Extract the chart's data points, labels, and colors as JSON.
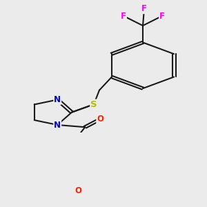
{
  "background_color": "#ebebeb",
  "bond_color": "#1a1a1a",
  "colors": {
    "N": "#0000cc",
    "O_carbonyl": "#ff2200",
    "O_methoxy": "#ff2200",
    "S": "#bbbb00",
    "F": "#ff00ff",
    "C": "#1a1a1a"
  },
  "font_size_atom": 8.5,
  "fig_width": 3.0,
  "fig_height": 3.0,
  "dpi": 100
}
